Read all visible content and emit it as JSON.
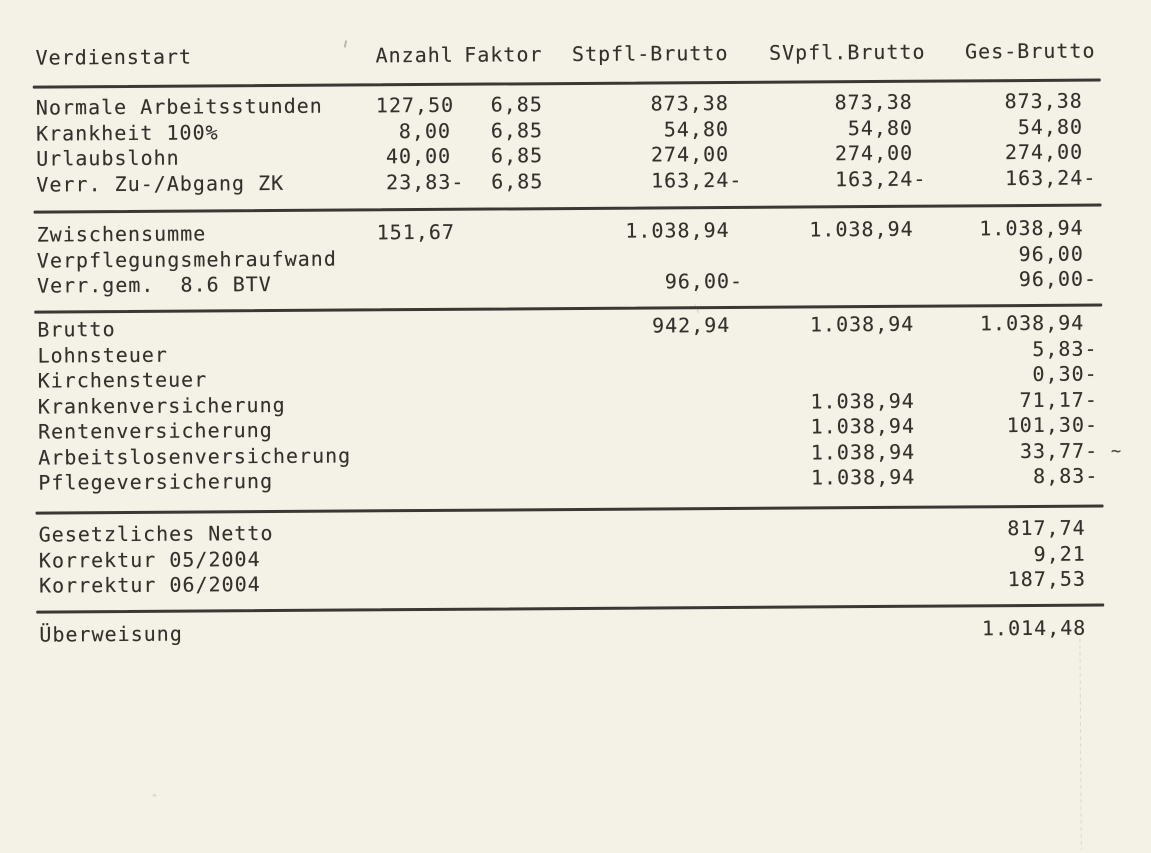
{
  "colors": {
    "paper": "#f4f2e7",
    "ink": "#33312c",
    "rule": "#3a3833"
  },
  "table": {
    "headers": {
      "verdienstart": "Verdienstart",
      "anzahl": "Anzahl",
      "faktor": "Faktor",
      "stpfl": "Stpfl-Brutto",
      "svpfl": "SVpfl.Brutto",
      "ges": "Ges-Brutto"
    },
    "sections": [
      {
        "name": "earnings",
        "rows": [
          {
            "label": "Normale Arbeitsstunden",
            "anzahl": "127,50",
            "faktor": "6,85",
            "stpfl": "873,38",
            "svpfl": "873,38",
            "ges": "873,38"
          },
          {
            "label": "Krankheit 100%",
            "anzahl": "8,00",
            "faktor": "6,85",
            "stpfl": "54,80",
            "svpfl": "54,80",
            "ges": "54,80"
          },
          {
            "label": "Urlaubslohn",
            "anzahl": "40,00",
            "faktor": "6,85",
            "stpfl": "274,00",
            "svpfl": "274,00",
            "ges": "274,00"
          },
          {
            "label": "Verr. Zu-/Abgang ZK",
            "anzahl": "23,83-",
            "faktor": "6,85",
            "stpfl": "163,24-",
            "svpfl": "163,24-",
            "ges": "163,24-"
          }
        ]
      },
      {
        "name": "subtotal",
        "rows": [
          {
            "label": "Zwischensumme",
            "anzahl": "151,67",
            "faktor": "",
            "stpfl": "1.038,94",
            "svpfl": "1.038,94",
            "ges": "1.038,94"
          },
          {
            "label": "Verpflegungsmehraufwand",
            "anzahl": "",
            "faktor": "",
            "stpfl": "",
            "svpfl": "",
            "ges": "96,00"
          },
          {
            "label": "Verr.gem.  8.6 BTV",
            "anzahl": "",
            "faktor": "",
            "stpfl": "96,00-",
            "svpfl": "",
            "ges": "96,00-"
          }
        ]
      },
      {
        "name": "gross-and-deductions",
        "rows": [
          {
            "label": "Brutto",
            "anzahl": "",
            "faktor": "",
            "stpfl": "942,94",
            "svpfl": "1.038,94",
            "ges": "1.038,94"
          },
          {
            "label": "Lohnsteuer",
            "anzahl": "",
            "faktor": "",
            "stpfl": "",
            "svpfl": "",
            "ges": "5,83-"
          },
          {
            "label": "Kirchensteuer",
            "anzahl": "",
            "faktor": "",
            "stpfl": "",
            "svpfl": "",
            "ges": "0,30-"
          },
          {
            "label": "Krankenversicherung",
            "anzahl": "",
            "faktor": "",
            "stpfl": "",
            "svpfl": "1.038,94",
            "ges": "71,17-"
          },
          {
            "label": "Rentenversicherung",
            "anzahl": "",
            "faktor": "",
            "stpfl": "",
            "svpfl": "1.038,94",
            "ges": "101,30-"
          },
          {
            "label": "Arbeitslosenversicherung",
            "anzahl": "",
            "faktor": "",
            "stpfl": "",
            "svpfl": "1.038,94",
            "ges": "33,77-",
            "mark": "~"
          },
          {
            "label": "Pflegeversicherung",
            "anzahl": "",
            "faktor": "",
            "stpfl": "",
            "svpfl": "1.038,94",
            "ges": "8,83-"
          }
        ]
      },
      {
        "name": "netto",
        "rows": [
          {
            "label": "Gesetzliches Netto",
            "anzahl": "",
            "faktor": "",
            "stpfl": "",
            "svpfl": "",
            "ges": "817,74"
          },
          {
            "label": "Korrektur 05/2004",
            "anzahl": "",
            "faktor": "",
            "stpfl": "",
            "svpfl": "",
            "ges": "9,21"
          },
          {
            "label": "Korrektur 06/2004",
            "anzahl": "",
            "faktor": "",
            "stpfl": "",
            "svpfl": "",
            "ges": "187,53"
          }
        ]
      },
      {
        "name": "payout",
        "rows": [
          {
            "label": "Überweisung",
            "anzahl": "",
            "faktor": "",
            "stpfl": "",
            "svpfl": "",
            "ges": "1.014,48"
          }
        ]
      }
    ]
  }
}
